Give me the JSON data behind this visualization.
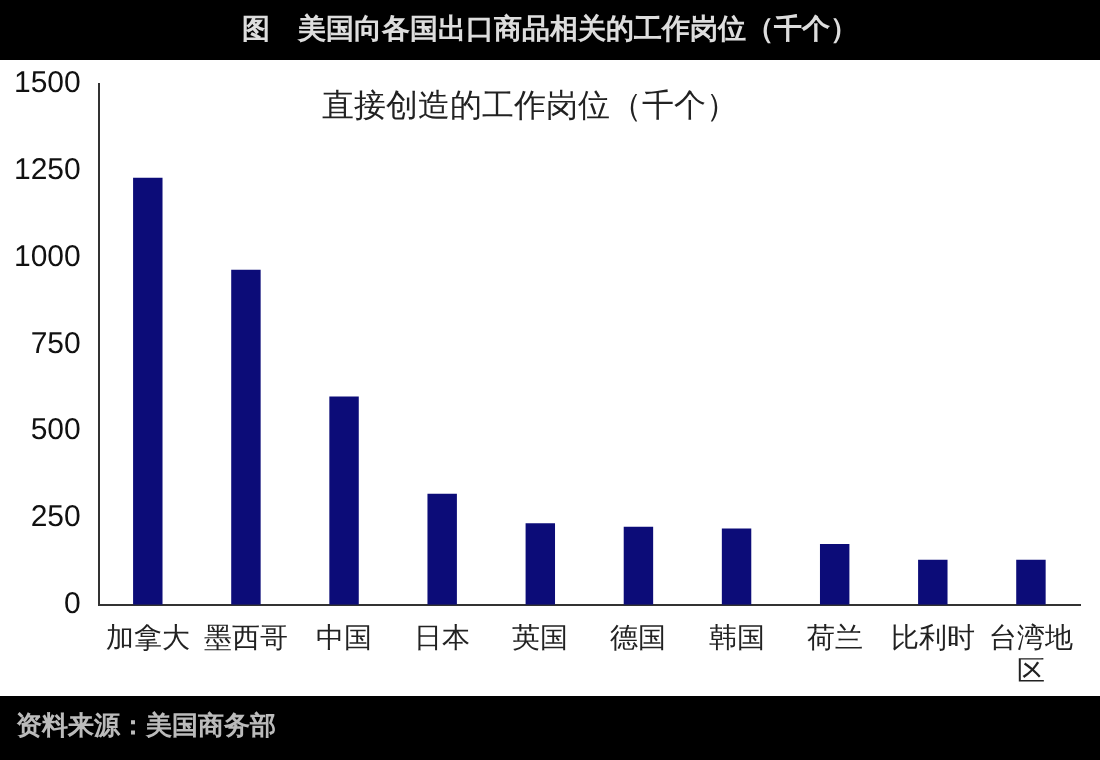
{
  "chart_data": {
    "type": "bar",
    "title": "图　美国向各国出口商品相关的工作岗位（千个）",
    "subtitle": "直接创造的工作岗位（千个）",
    "categories": [
      "加拿大",
      "墨西哥",
      "中国",
      "日本",
      "英国",
      "德国",
      "韩国",
      "荷兰",
      "比利时",
      "台湾地区"
    ],
    "values": [
      1230,
      965,
      600,
      320,
      235,
      225,
      220,
      175,
      130,
      130
    ],
    "color": "#0c0c78",
    "ylim": [
      0,
      1500
    ],
    "yticks": [
      0,
      250,
      500,
      750,
      1000,
      1250,
      1500
    ],
    "grid": false,
    "legend": false,
    "annotations": [
      "资料来源：美国商务部"
    ]
  }
}
